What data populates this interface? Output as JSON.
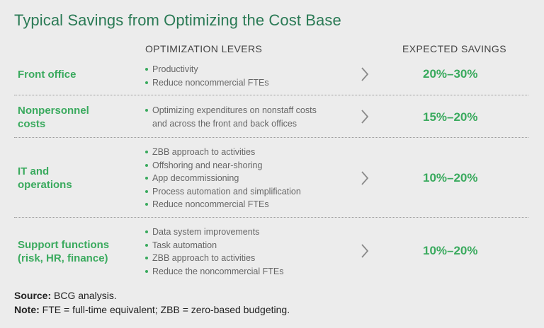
{
  "title": "Typical Savings from Optimizing the Cost Base",
  "headers": {
    "levers": "OPTIMIZATION LEVERS",
    "savings": "EXPECTED SAVINGS"
  },
  "rows": [
    {
      "label": [
        "Front office"
      ],
      "levers": [
        "Productivity",
        "Reduce noncommercial FTEs"
      ],
      "savings": "20%–30%"
    },
    {
      "label": [
        "Nonpersonnel",
        "costs"
      ],
      "levers": [
        "Optimizing expenditures on nonstaff costs",
        "and across the front and back offices"
      ],
      "savings": "15%–20%"
    },
    {
      "label": [
        "IT and",
        "operations"
      ],
      "levers": [
        "ZBB approach to activities",
        "Offshoring and near-shoring",
        "App decommissioning",
        "Process automation and simplification",
        "Reduce noncommercial FTEs"
      ],
      "savings": "10%–20%"
    },
    {
      "label": [
        "Support functions",
        "(risk, HR, finance)"
      ],
      "levers": [
        "Data system improvements",
        "Task automation",
        "ZBB approach to activities",
        "Reduce the noncommercial FTEs"
      ],
      "savings": "10%–20%"
    }
  ],
  "footer": {
    "source_label": "Source:",
    "source_text": "BCG analysis.",
    "note_label": "Note:",
    "note_text": "FTE = full-time equivalent; ZBB = zero-based budgeting."
  },
  "colors": {
    "title": "#2a7a55",
    "accent": "#3aaa5e",
    "background": "#ececec"
  },
  "icons": {
    "row_arrow": "chevron-right-icon"
  }
}
